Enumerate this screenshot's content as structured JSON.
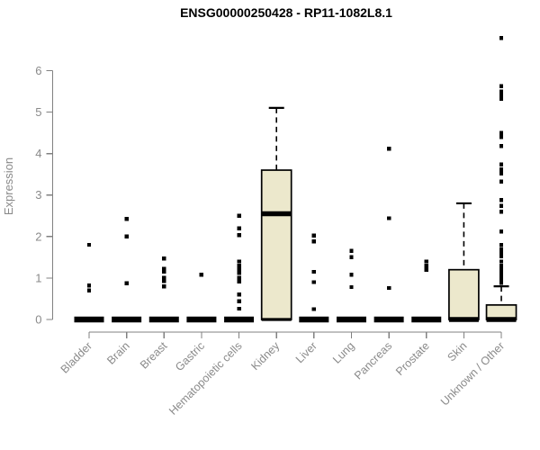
{
  "colors": {
    "background": "#ffffff",
    "title": "#000000",
    "axis_line": "#808080",
    "axis_text": "#8a8a8a",
    "box_fill": "#ece8cc",
    "box_border": "#000000",
    "point": "#000000"
  },
  "chart_data": {
    "type": "boxplot",
    "title": "ENSG00000250428 - RP11-1082L8.1",
    "xlabel": "",
    "ylabel": "Expression",
    "ylim": [
      0,
      6.9
    ],
    "yticks": [
      0,
      1,
      2,
      3,
      4,
      5,
      6
    ],
    "grid": "off",
    "legend": "none",
    "categories": [
      "Bladder",
      "Brain",
      "Breast",
      "Gastric",
      "Hematopoietic cells",
      "Kidney",
      "Liver",
      "Lung",
      "Pancreas",
      "Prostate",
      "Skin",
      "Unknown / Other"
    ],
    "series": [
      {
        "name": "Bladder",
        "q1": 0,
        "median": 0,
        "q3": 0,
        "whisker_low": 0,
        "whisker_high": 0,
        "outliers": [
          1.8,
          0.82,
          0.7
        ]
      },
      {
        "name": "Brain",
        "q1": 0,
        "median": 0,
        "q3": 0,
        "whisker_low": 0,
        "whisker_high": 0,
        "outliers": [
          2.42,
          2.0,
          0.87
        ]
      },
      {
        "name": "Breast",
        "q1": 0,
        "median": 0,
        "q3": 0,
        "whisker_low": 0,
        "whisker_high": 0,
        "outliers": [
          1.47,
          1.22,
          1.15,
          1.0,
          0.93,
          0.8
        ]
      },
      {
        "name": "Gastric",
        "q1": 0,
        "median": 0,
        "q3": 0,
        "whisker_low": 0,
        "whisker_high": 0,
        "outliers": [
          1.08
        ]
      },
      {
        "name": "Hematopoietic cells",
        "q1": 0,
        "median": 0,
        "q3": 0,
        "whisker_low": 0,
        "whisker_high": 0,
        "outliers": [
          2.5,
          2.2,
          2.03,
          1.4,
          1.3,
          1.22,
          1.12,
          1.0,
          0.92,
          0.6,
          0.44,
          0.26
        ]
      },
      {
        "name": "Kidney",
        "q1": 0,
        "median": 2.55,
        "q3": 3.6,
        "whisker_low": 0,
        "whisker_high": 5.1,
        "outliers": []
      },
      {
        "name": "Liver",
        "q1": 0,
        "median": 0,
        "q3": 0,
        "whisker_low": 0,
        "whisker_high": 0,
        "outliers": [
          2.02,
          1.88,
          1.15,
          0.9,
          0.25
        ]
      },
      {
        "name": "Lung",
        "q1": 0,
        "median": 0,
        "q3": 0,
        "whisker_low": 0,
        "whisker_high": 0,
        "outliers": [
          1.65,
          1.5,
          1.08,
          0.78
        ]
      },
      {
        "name": "Pancreas",
        "q1": 0,
        "median": 0,
        "q3": 0,
        "whisker_low": 0,
        "whisker_high": 0,
        "outliers": [
          4.12,
          2.44,
          0.76
        ]
      },
      {
        "name": "Prostate",
        "q1": 0,
        "median": 0,
        "q3": 0,
        "whisker_low": 0,
        "whisker_high": 0,
        "outliers": [
          1.4,
          1.3,
          1.2
        ]
      },
      {
        "name": "Skin",
        "q1": 0,
        "median": 0,
        "q3": 1.2,
        "whisker_low": 0,
        "whisker_high": 2.8,
        "outliers": []
      },
      {
        "name": "Unknown / Other",
        "q1": 0,
        "median": 0,
        "q3": 0.35,
        "whisker_low": 0,
        "whisker_high": 0.8,
        "outliers": [
          6.78,
          5.62,
          5.5,
          5.42,
          5.32,
          4.5,
          4.4,
          4.18,
          3.74,
          3.62,
          3.52,
          3.32,
          2.88,
          2.74,
          2.6,
          2.12,
          1.8,
          1.7,
          1.6,
          1.52,
          1.4,
          1.3,
          1.2,
          1.13,
          1.05,
          0.95,
          0.88
        ]
      }
    ]
  }
}
